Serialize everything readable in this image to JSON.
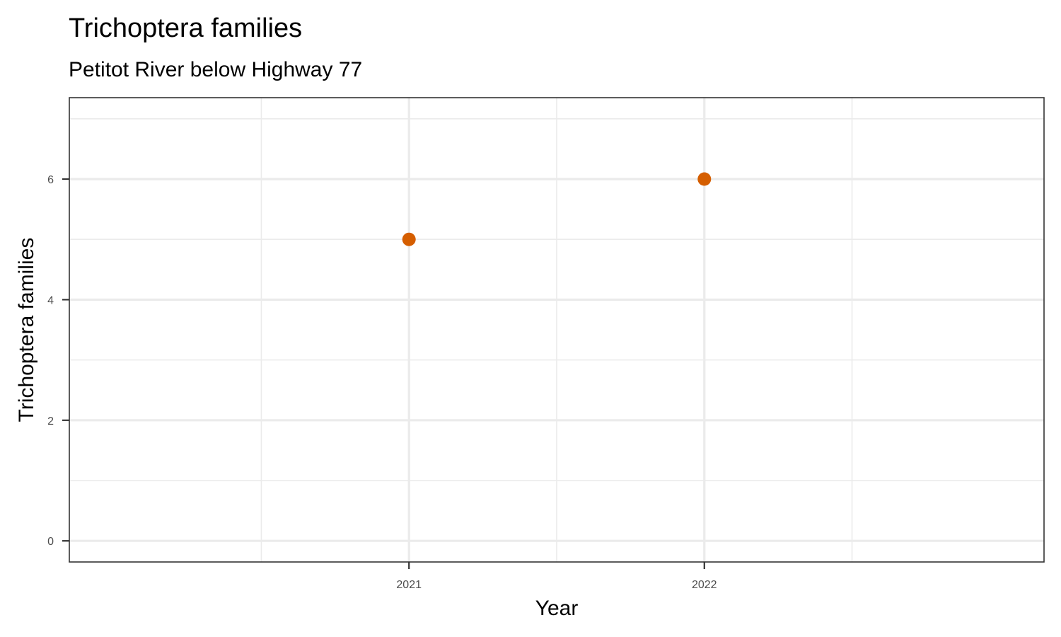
{
  "chart_data": {
    "type": "scatter",
    "title": "Trichoptera families",
    "subtitle": "Petitot River below Highway 77",
    "xlabel": "Year",
    "ylabel": "Trichoptera families",
    "x_ticks": [
      "2021",
      "2022"
    ],
    "y_ticks": [
      "0",
      "2",
      "4",
      "6"
    ],
    "xlim": [
      2019.85,
      2023.15
    ],
    "ylim": [
      -0.35,
      7.35
    ],
    "points": [
      {
        "x": 2021,
        "y": 5
      },
      {
        "x": 2022,
        "y": 6
      }
    ],
    "point_color": "#d55e00",
    "grid": true,
    "legend": "none"
  }
}
